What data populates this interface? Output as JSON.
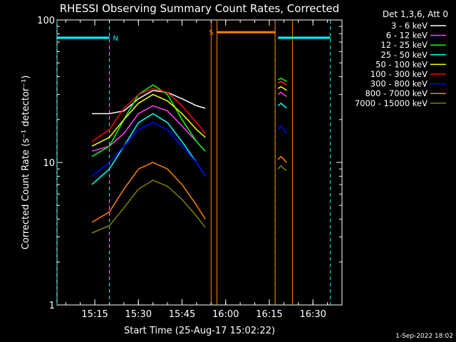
{
  "chart_data": {
    "type": "line",
    "title": "RHESSI Observing Summary Count Rates, Corrected",
    "xlabel": "Start Time (25-Aug-17 15:02:22)",
    "ylabel": "Corrected Count Rate (s⁻¹ detector⁻¹)",
    "y_scale": "log",
    "ylim": [
      1,
      100
    ],
    "xlim": [
      "15:02",
      "16:40"
    ],
    "x_ticks": [
      "15:15",
      "15:30",
      "15:45",
      "16:00",
      "16:15",
      "16:30"
    ],
    "y_ticks": [
      "1",
      "10",
      "100"
    ],
    "legend_title": "Det 1,3,6, Att 0",
    "legend_position": "right",
    "timestamp": "1-Sep-2022 18:02",
    "series": [
      {
        "name": "3 - 6 keV",
        "color": "#ffffff",
        "segments": [
          {
            "x": [
              "15:14",
              "15:20",
              "15:25",
              "15:30",
              "15:35",
              "15:40",
              "15:45",
              "15:50",
              "15:53"
            ],
            "y": [
              22,
              22,
              23,
              28,
              32,
              31,
              28,
              25,
              24
            ]
          },
          {
            "x": [
              "16:18",
              "16:19",
              "16:20",
              "16:21"
            ],
            "y": [
              36,
              37,
              36,
              35
            ]
          }
        ]
      },
      {
        "name": "6 - 12 keV",
        "color": "#ff40ff",
        "segments": [
          {
            "x": [
              "15:14",
              "15:20",
              "15:25",
              "15:30",
              "15:35",
              "15:40",
              "15:45",
              "15:50",
              "15:53"
            ],
            "y": [
              12,
              13,
              16,
              22,
              25,
              23,
              18,
              14,
              12
            ]
          },
          {
            "x": [
              "16:18",
              "16:19",
              "16:20",
              "16:21"
            ],
            "y": [
              30,
              31,
              30,
              29
            ]
          }
        ]
      },
      {
        "name": "12 - 25 keV",
        "color": "#00ff00",
        "segments": [
          {
            "x": [
              "15:14",
              "15:20",
              "15:25",
              "15:30",
              "15:35",
              "15:40",
              "15:45",
              "15:50",
              "15:53"
            ],
            "y": [
              11,
              13,
              20,
              30,
              35,
              30,
              20,
              14,
              12
            ]
          },
          {
            "x": [
              "16:18",
              "16:19",
              "16:20",
              "16:21"
            ],
            "y": [
              38,
              39,
              38,
              37
            ]
          }
        ]
      },
      {
        "name": "25 - 50 keV",
        "color": "#00ffff",
        "segments": [
          {
            "x": [
              "15:14",
              "15:20",
              "15:25",
              "15:30",
              "15:35",
              "15:40",
              "15:45",
              "15:50",
              "15:53"
            ],
            "y": [
              7,
              9,
              13,
              19,
              22,
              19,
              14,
              10,
              8
            ]
          },
          {
            "x": [
              "16:18",
              "16:19",
              "16:20",
              "16:21"
            ],
            "y": [
              25,
              26,
              25,
              24
            ]
          }
        ]
      },
      {
        "name": "50 - 100 keV",
        "color": "#ffff00",
        "segments": [
          {
            "x": [
              "15:14",
              "15:20",
              "15:25",
              "15:30",
              "15:35",
              "15:40",
              "15:45",
              "15:50",
              "15:53"
            ],
            "y": [
              13,
              15,
              20,
              26,
              30,
              27,
              22,
              17,
              15
            ]
          },
          {
            "x": [
              "16:18",
              "16:19",
              "16:20",
              "16:21"
            ],
            "y": [
              33,
              34,
              33,
              32
            ]
          }
        ]
      },
      {
        "name": "100 - 300 keV",
        "color": "#ff0000",
        "segments": [
          {
            "x": [
              "15:14",
              "15:20",
              "15:25",
              "15:30",
              "15:35",
              "15:40",
              "15:45",
              "15:50",
              "15:53"
            ],
            "y": [
              14,
              17,
              24,
              30,
              33,
              31,
              25,
              19,
              16
            ]
          },
          {
            "x": [
              "16:18",
              "16:19",
              "16:20",
              "16:21"
            ],
            "y": [
              36,
              37,
              36,
              35
            ]
          }
        ]
      },
      {
        "name": "300 - 800 keV",
        "color": "#0000ff",
        "segments": [
          {
            "x": [
              "15:14",
              "15:20",
              "15:25",
              "15:30",
              "15:35",
              "15:40",
              "15:45",
              "15:50",
              "15:53"
            ],
            "y": [
              8,
              10,
              13,
              17,
              19,
              17,
              13,
              10,
              8
            ]
          },
          {
            "x": [
              "16:18",
              "16:19",
              "16:20",
              "16:21"
            ],
            "y": [
              17,
              18,
              17,
              16
            ]
          }
        ]
      },
      {
        "name": "800 - 7000 keV",
        "color": "#ff8000",
        "segments": [
          {
            "x": [
              "15:14",
              "15:20",
              "15:25",
              "15:30",
              "15:35",
              "15:40",
              "15:45",
              "15:50",
              "15:53"
            ],
            "y": [
              3.8,
              4.5,
              6.5,
              9,
              10,
              9,
              7,
              5,
              4
            ]
          },
          {
            "x": [
              "16:18",
              "16:19",
              "16:20",
              "16:21"
            ],
            "y": [
              10.5,
              11,
              10.5,
              10
            ]
          }
        ]
      },
      {
        "name": "7000 - 15000 keV",
        "color": "#808000",
        "segments": [
          {
            "x": [
              "15:14",
              "15:20",
              "15:25",
              "15:30",
              "15:35",
              "15:40",
              "15:45",
              "15:50",
              "15:53"
            ],
            "y": [
              3.2,
              3.6,
              4.8,
              6.5,
              7.5,
              6.8,
              5.5,
              4.2,
              3.5
            ]
          },
          {
            "x": [
              "16:18",
              "16:19",
              "16:20",
              "16:21"
            ],
            "y": [
              9,
              9.5,
              9,
              8.8
            ]
          }
        ]
      }
    ],
    "annotations": [
      {
        "label": "N",
        "color": "#00ffff",
        "x_start": "15:02",
        "x_end": "15:20",
        "y": 75
      },
      {
        "label": "S",
        "color": "#ff8000",
        "x_start": "15:57",
        "x_end": "16:17",
        "y": 82
      },
      {
        "label": "",
        "color": "#00ffff",
        "x_start": "16:18",
        "x_end": "16:36",
        "y": 75
      }
    ],
    "vertical_lines": [
      {
        "x": "15:02",
        "color": "#00ffff",
        "style": "dashed"
      },
      {
        "x": "15:20",
        "color": "#00ffff",
        "style": "dashed"
      },
      {
        "x": "16:17",
        "color": "#00ffff",
        "style": "dashed"
      },
      {
        "x": "16:36",
        "color": "#00ffff",
        "style": "dashed"
      },
      {
        "x": "15:55",
        "color": "#ff8000",
        "style": "solid"
      },
      {
        "x": "15:57",
        "color": "#ff8000",
        "style": "solid"
      },
      {
        "x": "16:17",
        "color": "#ff8000",
        "style": "solid"
      },
      {
        "x": "16:23",
        "color": "#ff8000",
        "style": "solid"
      }
    ]
  }
}
